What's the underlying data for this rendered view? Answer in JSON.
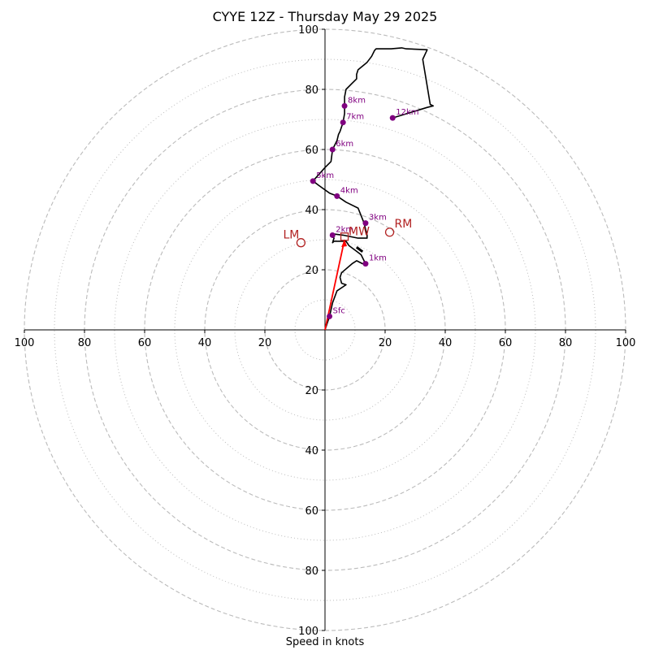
{
  "chart_data": {
    "type": "hodograph",
    "title": "CYYE 12Z - Thursday May 29 2025",
    "xlabel": "Speed in knots",
    "units": "knots",
    "range": [
      -100,
      100
    ],
    "rings_dashed": [
      20,
      40,
      60,
      80,
      100
    ],
    "rings_dotted": [
      10,
      30,
      50,
      70,
      90
    ],
    "tick_labels": [
      "100",
      "80",
      "60",
      "40",
      "20",
      "20",
      "40",
      "60",
      "80",
      "100"
    ],
    "y_tick_labels": [
      "100",
      "80",
      "60",
      "40",
      "20",
      "20",
      "40",
      "60",
      "80",
      "100"
    ],
    "hodograph_trace": [
      [
        0,
        0
      ],
      [
        1.5,
        4.5
      ],
      [
        2.5,
        9
      ],
      [
        4,
        13
      ],
      [
        7,
        15
      ],
      [
        5.5,
        15.5
      ],
      [
        5,
        17.5
      ],
      [
        5.5,
        19
      ],
      [
        9,
        22
      ],
      [
        10.5,
        23
      ],
      [
        12.5,
        22
      ],
      [
        13.5,
        22
      ],
      [
        12,
        25
      ],
      [
        10,
        26.5
      ],
      [
        8,
        28
      ],
      [
        7,
        29.5
      ],
      [
        5.5,
        29.5
      ],
      [
        3,
        29.5
      ],
      [
        2.5,
        29
      ],
      [
        3,
        30.5
      ],
      [
        2.5,
        31
      ],
      [
        2,
        32
      ],
      [
        6,
        31.5
      ],
      [
        11,
        30.5
      ],
      [
        14,
        30.5
      ],
      [
        14,
        31.5
      ],
      [
        13.5,
        33.5
      ],
      [
        13,
        35.5
      ],
      [
        11,
        40.5
      ],
      [
        7,
        42.5
      ],
      [
        4,
        44.5
      ],
      [
        1.5,
        45.5
      ],
      [
        -2,
        48
      ],
      [
        -4,
        49.5
      ],
      [
        0,
        54
      ],
      [
        2,
        56
      ],
      [
        2.5,
        60
      ],
      [
        4,
        63
      ],
      [
        4.5,
        65
      ],
      [
        5,
        66
      ],
      [
        6,
        69
      ],
      [
        6.5,
        72
      ],
      [
        6.5,
        74.5
      ],
      [
        6.5,
        77.5
      ],
      [
        7,
        80
      ],
      [
        9,
        82
      ],
      [
        10.5,
        83.5
      ],
      [
        10.5,
        85
      ],
      [
        11,
        86.5
      ],
      [
        14,
        89
      ],
      [
        15.5,
        91
      ],
      [
        16.5,
        93
      ],
      [
        17,
        93.5
      ],
      [
        18,
        93.5
      ],
      [
        22,
        93.5
      ],
      [
        25.5,
        93.8
      ],
      [
        27,
        93.5
      ],
      [
        34,
        93.2
      ],
      [
        32.5,
        90
      ],
      [
        33.5,
        84
      ],
      [
        35,
        75
      ],
      [
        36,
        74.5
      ],
      [
        34,
        74
      ],
      [
        22.5,
        70.5
      ]
    ],
    "height_markers": [
      {
        "label": "Sfc",
        "u": 1.5,
        "v": 4.5
      },
      {
        "label": "1km",
        "u": 13.5,
        "v": 22
      },
      {
        "label": "2km",
        "u": 2.5,
        "v": 31.5
      },
      {
        "label": "3km",
        "u": 13.5,
        "v": 35.5
      },
      {
        "label": "4km",
        "u": 4,
        "v": 44.5
      },
      {
        "label": "5km",
        "u": -4,
        "v": 49.5
      },
      {
        "label": "6km",
        "u": 2.5,
        "v": 60
      },
      {
        "label": "7km",
        "u": 6,
        "v": 69
      },
      {
        "label": "8km",
        "u": 6.5,
        "v": 74.5
      },
      {
        "label": "12km",
        "u": 22.5,
        "v": 70.5
      }
    ],
    "storm_motion": {
      "rm": {
        "label": "RM",
        "u": 21.5,
        "v": 32.5
      },
      "lm": {
        "label": "LM",
        "u": -8,
        "v": 29
      },
      "mw": {
        "label": "MW",
        "u": 6.5,
        "v": 31
      }
    },
    "shear_vector": {
      "from": [
        0,
        0
      ],
      "to": [
        6.5,
        30
      ]
    },
    "colors": {
      "trace": "#000000",
      "marker": "#800080",
      "storm_motion": "#b22222",
      "shear_vector": "#ff0000",
      "grid": "#bbbbbb"
    }
  }
}
